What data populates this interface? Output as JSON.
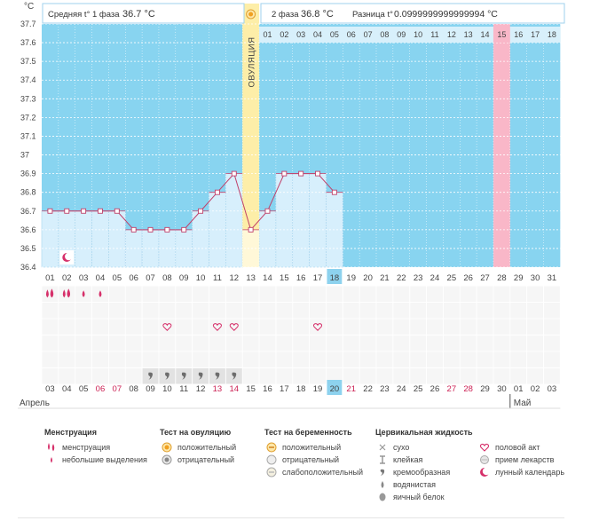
{
  "units": "°C",
  "header": {
    "phase1_label": "Средняя t° 1 фаза",
    "phase1_value": "36.7 °C",
    "phase2_label": "2 фаза",
    "phase2_value": "36.8 °C",
    "diff_label": "Разница t°",
    "diff_value": "0.0999999999999994 °C"
  },
  "ovulation_label": "ОВУЛЯЦИЯ",
  "colors": {
    "chart_bg": "#88d4f0",
    "bar_fill": "#d7effc",
    "bar_stroke": "#a8d5ee",
    "ovulation": "#fdeea8",
    "menses_day": "#f9b7c8",
    "line": "#c0406a",
    "accent_red": "#cc2255",
    "highlight_day": "#8dd2ee"
  },
  "chart_data": {
    "type": "line",
    "title": "",
    "xlabel": "",
    "ylabel": "°C",
    "ylim": [
      36.4,
      37.7
    ],
    "yticks": [
      "36.4",
      "36.5",
      "36.6",
      "36.7",
      "36.8",
      "36.9",
      "37",
      "37.1",
      "37.2",
      "37.3",
      "37.4",
      "37.5",
      "37.6",
      "37.7"
    ],
    "cycle_days": [
      "01",
      "02",
      "03",
      "04",
      "05",
      "06",
      "07",
      "08",
      "09",
      "10",
      "11",
      "12",
      "13",
      "14",
      "15",
      "16",
      "17",
      "18",
      "19",
      "20",
      "21",
      "22",
      "23",
      "24",
      "25",
      "26",
      "27",
      "28",
      "29",
      "30",
      "31"
    ],
    "phase2_days": [
      "01",
      "02",
      "03",
      "04",
      "05",
      "06",
      "07",
      "08",
      "09",
      "10",
      "11",
      "12",
      "13",
      "14",
      "15",
      "16",
      "17",
      "18"
    ],
    "temperatures": [
      36.7,
      36.7,
      36.7,
      36.7,
      36.7,
      36.6,
      36.6,
      36.6,
      36.6,
      36.7,
      36.8,
      36.9,
      36.6,
      36.7,
      36.9,
      36.9,
      36.9,
      36.8
    ],
    "ovulation_day": 13,
    "highlight_day": 18,
    "pink_day": 28,
    "calendar_dates": [
      "03",
      "04",
      "05",
      "06",
      "07",
      "08",
      "09",
      "10",
      "11",
      "12",
      "13",
      "14",
      "15",
      "16",
      "17",
      "18",
      "19",
      "20",
      "21",
      "22",
      "23",
      "24",
      "25",
      "26",
      "27",
      "28",
      "29",
      "30",
      "01",
      "02",
      "03"
    ],
    "red_dates_index": [
      3,
      4,
      10,
      11,
      18,
      24,
      25
    ],
    "month_start": "Апрель",
    "month_next": "Май",
    "month_next_index": 28,
    "today_index": 17,
    "marks": {
      "menstruation": [
        1,
        2
      ],
      "spotting": [
        3,
        4
      ],
      "moon_day": 2,
      "intercourse": [
        8,
        11,
        12,
        17
      ],
      "creamy": [
        7,
        8,
        9,
        10,
        11,
        12
      ]
    }
  },
  "legend": {
    "menses": {
      "title": "Менструация",
      "items": [
        "менструация",
        "небольшие выделения"
      ]
    },
    "ovtest": {
      "title": "Тест на овуляцию",
      "items": [
        "положительный",
        "отрицательный"
      ]
    },
    "pregtest": {
      "title": "Тест на беременность",
      "items": [
        "положительный",
        "отрицательный",
        "слабоположительный"
      ]
    },
    "cervical": {
      "title": "Цервикальная жидкость",
      "items": [
        "сухо",
        "клейкая",
        "кремообразная",
        "водянистая",
        "яичный белок"
      ]
    },
    "other": {
      "items": [
        "половой акт",
        "прием лекарств",
        "лунный календарь"
      ]
    }
  }
}
